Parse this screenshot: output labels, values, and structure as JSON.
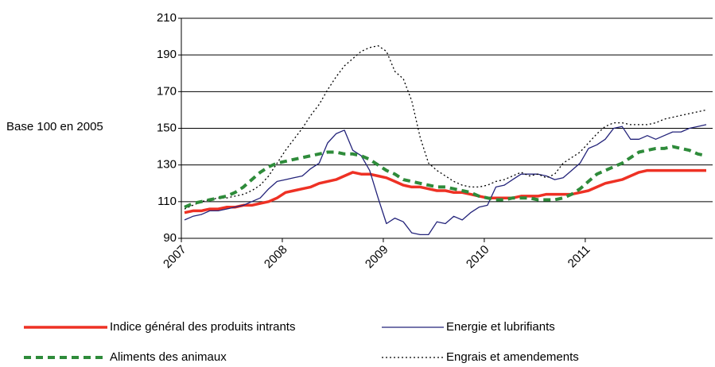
{
  "chart_data": {
    "type": "line",
    "ylabel": "Base 100 en 2005",
    "categories": [
      "2007",
      null,
      null,
      null,
      null,
      null,
      null,
      null,
      null,
      null,
      null,
      null,
      "2008",
      null,
      null,
      null,
      null,
      null,
      null,
      null,
      null,
      null,
      null,
      null,
      "2009",
      null,
      null,
      null,
      null,
      null,
      null,
      null,
      null,
      null,
      null,
      null,
      "2010",
      null,
      null,
      null,
      null,
      null,
      null,
      null,
      null,
      null,
      null,
      null,
      "2011",
      null,
      null,
      null,
      null,
      null,
      null,
      null,
      null,
      null,
      null,
      null,
      null,
      null,
      null
    ],
    "ylim": [
      90,
      210
    ],
    "yticks": [
      90,
      110,
      130,
      150,
      170,
      190,
      210
    ],
    "grid": true,
    "series": [
      {
        "name": "Indice général des produits intrants",
        "color": "#ee3124",
        "style": "thick",
        "values": [
          104,
          105,
          105,
          106,
          106,
          107,
          107,
          108,
          108,
          109,
          110,
          112,
          115,
          116,
          117,
          118,
          120,
          121,
          122,
          124,
          126,
          125,
          125,
          124,
          123,
          121,
          119,
          118,
          118,
          117,
          116,
          116,
          115,
          115,
          114,
          113,
          112,
          112,
          112,
          112,
          113,
          113,
          113,
          114,
          114,
          114,
          114,
          115,
          116,
          118,
          120,
          121,
          122,
          124,
          126,
          127,
          127,
          127,
          127,
          127,
          127,
          127,
          127
        ]
      },
      {
        "name": "Energie et lubrifiants",
        "color": "#23237a",
        "style": "thin",
        "values": [
          100,
          102,
          103,
          105,
          105,
          106,
          107,
          108,
          110,
          112,
          117,
          121,
          122,
          123,
          124,
          128,
          131,
          142,
          147,
          149,
          138,
          135,
          127,
          112,
          98,
          101,
          99,
          93,
          92,
          92,
          99,
          98,
          102,
          100,
          104,
          107,
          108,
          118,
          119,
          122,
          125,
          125,
          125,
          124,
          122,
          123,
          127,
          131,
          139,
          141,
          144,
          150,
          151,
          144,
          144,
          146,
          144,
          146,
          148,
          148,
          150,
          151,
          152
        ]
      },
      {
        "name": "Aliments des animaux",
        "color": "#2e8b3a",
        "style": "thick-dashed",
        "values": [
          107,
          109,
          110,
          111,
          112,
          113,
          115,
          118,
          122,
          126,
          129,
          131,
          132,
          133,
          134,
          135,
          136,
          137,
          137,
          136,
          136,
          135,
          133,
          130,
          127,
          125,
          122,
          121,
          120,
          119,
          118,
          118,
          117,
          116,
          115,
          113,
          112,
          111,
          111,
          112,
          112,
          112,
          111,
          111,
          111,
          112,
          114,
          117,
          121,
          125,
          127,
          129,
          131,
          134,
          137,
          138,
          139,
          139,
          140,
          139,
          138,
          136,
          135
        ]
      },
      {
        "name": "Engrais et amendements",
        "color": "#000000",
        "style": "dotted",
        "values": [
          106,
          108,
          110,
          111,
          112,
          112,
          113,
          114,
          116,
          119,
          124,
          131,
          138,
          144,
          150,
          157,
          163,
          171,
          178,
          184,
          188,
          192,
          194,
          195,
          192,
          181,
          177,
          165,
          145,
          131,
          127,
          124,
          121,
          119,
          118,
          118,
          119,
          121,
          122,
          124,
          126,
          124,
          125,
          123,
          125,
          131,
          134,
          137,
          142,
          147,
          151,
          153,
          153,
          152,
          152,
          152,
          153,
          155,
          156,
          157,
          158,
          159,
          160
        ]
      }
    ]
  }
}
